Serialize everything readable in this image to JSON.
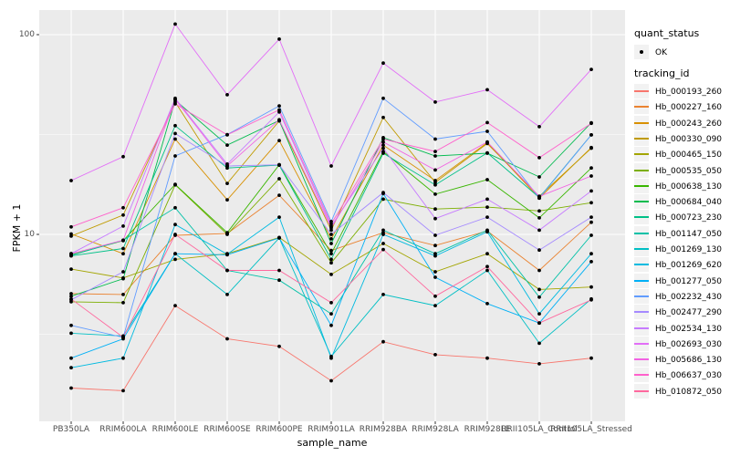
{
  "chart_data": {
    "type": "line",
    "title": "",
    "xlabel": "sample_name",
    "ylabel": "FPKM + 1",
    "y_scale": "log10",
    "ylim": [
      1.15,
      133
    ],
    "grid": true,
    "legend_position": "right",
    "panel_background": "#EBEBEB",
    "grid_color": "#FFFFFF",
    "tick_color": "#333333",
    "tick_label_color": "#4d4d4d",
    "point_marker_color": "#000000",
    "y_axis_ticks": [
      {
        "label": "100",
        "value": 100
      },
      {
        "label": "10",
        "value": 10
      }
    ],
    "y_minor_gridlines": [
      3.162,
      31.62
    ],
    "categories": [
      "PB350LA",
      "RRIM600LA",
      "RRIM600LE",
      "RRIM600SE",
      "RRIM600PE",
      "RRIM901LA",
      "RRIM928BA",
      "RRIM928LA",
      "RRIM928LE",
      "RRII105LA_Control",
      "RRII105LA_Stressed"
    ],
    "series": [
      {
        "name": "Hb_000193_260",
        "color": "#F8766D",
        "values": [
          1.7,
          1.65,
          4.4,
          3.0,
          2.75,
          1.85,
          2.9,
          2.5,
          2.4,
          2.25,
          2.4
        ]
      },
      {
        "name": "Hb_000227_160",
        "color": "#EA8331",
        "values": [
          5.05,
          5.0,
          9.9,
          10.1,
          15.7,
          8.3,
          10.2,
          8.8,
          10.4,
          6.6,
          11.5
        ]
      },
      {
        "name": "Hb_000243_260",
        "color": "#D89000",
        "values": [
          10.05,
          8.0,
          30.0,
          14.9,
          29.5,
          9.5,
          28.0,
          18.6,
          28.8,
          15.2,
          27.2
        ]
      },
      {
        "name": "Hb_000330_090",
        "color": "#C09B00",
        "values": [
          9.8,
          12.5,
          46.0,
          18.0,
          37.0,
          10.5,
          38.5,
          18.2,
          28.5,
          15.5,
          27.0
        ]
      },
      {
        "name": "Hb_000465_150",
        "color": "#A3A500",
        "values": [
          6.7,
          6.05,
          7.5,
          8.0,
          9.65,
          6.3,
          9.0,
          6.5,
          8.0,
          5.3,
          5.45
        ]
      },
      {
        "name": "Hb_000535_050",
        "color": "#7CAE00",
        "values": [
          4.6,
          4.55,
          17.7,
          10.0,
          19.0,
          7.2,
          15.0,
          13.4,
          13.7,
          13.1,
          14.4
        ]
      },
      {
        "name": "Hb_000638_130",
        "color": "#39B600",
        "values": [
          7.9,
          9.3,
          17.8,
          10.2,
          22.3,
          8.0,
          26.0,
          15.9,
          18.8,
          12.1,
          21.5
        ]
      },
      {
        "name": "Hb_000684_040",
        "color": "#00BB4E",
        "values": [
          4.9,
          6.0,
          47.0,
          28.0,
          37.2,
          9.0,
          30.5,
          24.7,
          25.5,
          19.4,
          36.2
        ]
      },
      {
        "name": "Hb_000723_230",
        "color": "#00C087",
        "values": [
          7.8,
          8.5,
          35.0,
          21.5,
          22.2,
          7.5,
          25.5,
          17.7,
          25.6,
          15.3,
          31.5
        ]
      },
      {
        "name": "Hb_001147_050",
        "color": "#00C1A7",
        "values": [
          7.85,
          9.35,
          13.6,
          6.6,
          5.9,
          4.0,
          10.5,
          8.0,
          10.5,
          4.85,
          9.9
        ]
      },
      {
        "name": "Hb_001269_130",
        "color": "#00BFC4",
        "values": [
          3.2,
          3.1,
          8.0,
          5.0,
          9.6,
          2.45,
          5.0,
          4.4,
          6.6,
          2.85,
          4.75
        ]
      },
      {
        "name": "Hb_001269_620",
        "color": "#00BAE0",
        "values": [
          2.15,
          2.4,
          11.2,
          7.95,
          12.2,
          2.4,
          10.0,
          7.8,
          10.3,
          4.0,
          8.0
        ]
      },
      {
        "name": "Hb_001277_050",
        "color": "#00B0F6",
        "values": [
          2.4,
          3.0,
          8.0,
          7.9,
          9.6,
          3.5,
          16.0,
          6.1,
          4.5,
          3.6,
          7.3
        ]
      },
      {
        "name": "Hb_002232_430",
        "color": "#619CFF",
        "values": [
          3.5,
          3.05,
          24.7,
          31.6,
          44.0,
          11.6,
          48.0,
          30.0,
          32.8,
          15.2,
          31.5
        ]
      },
      {
        "name": "Hb_002477_290",
        "color": "#A58AFF",
        "values": [
          4.7,
          6.5,
          32.0,
          22.0,
          22.3,
          10.0,
          16.2,
          9.9,
          12.2,
          8.35,
          12.2
        ]
      },
      {
        "name": "Hb_002534_130",
        "color": "#C77CFF",
        "values": [
          8.0,
          11.0,
          48.0,
          22.5,
          41.0,
          11.0,
          27.0,
          12.0,
          15.0,
          10.5,
          16.5
        ]
      },
      {
        "name": "Hb_002693_030",
        "color": "#E26EF7",
        "values": [
          18.6,
          24.5,
          113.0,
          50.0,
          95.0,
          22.0,
          72.0,
          46.0,
          53.0,
          34.6,
          67.0
        ]
      },
      {
        "name": "Hb_005686_130",
        "color": "#F263E3",
        "values": [
          8.0,
          9.35,
          47.5,
          22.0,
          37.5,
          10.8,
          29.0,
          21.0,
          29.0,
          15.5,
          19.6
        ]
      },
      {
        "name": "Hb_006637_030",
        "color": "#FF61CC",
        "values": [
          10.9,
          13.6,
          45.0,
          31.5,
          42.0,
          11.3,
          30.0,
          26.0,
          36.3,
          24.2,
          36.0
        ]
      },
      {
        "name": "Hb_010872_050",
        "color": "#FF689E",
        "values": [
          4.75,
          3.05,
          10.0,
          6.6,
          6.6,
          4.55,
          8.4,
          4.9,
          6.9,
          3.6,
          4.7
        ]
      }
    ]
  },
  "legend": {
    "quant_status_title": "quant_status",
    "quant_status_items": [
      {
        "label": "OK",
        "symbol": "black-point"
      }
    ],
    "tracking_id_title": "tracking_id"
  }
}
